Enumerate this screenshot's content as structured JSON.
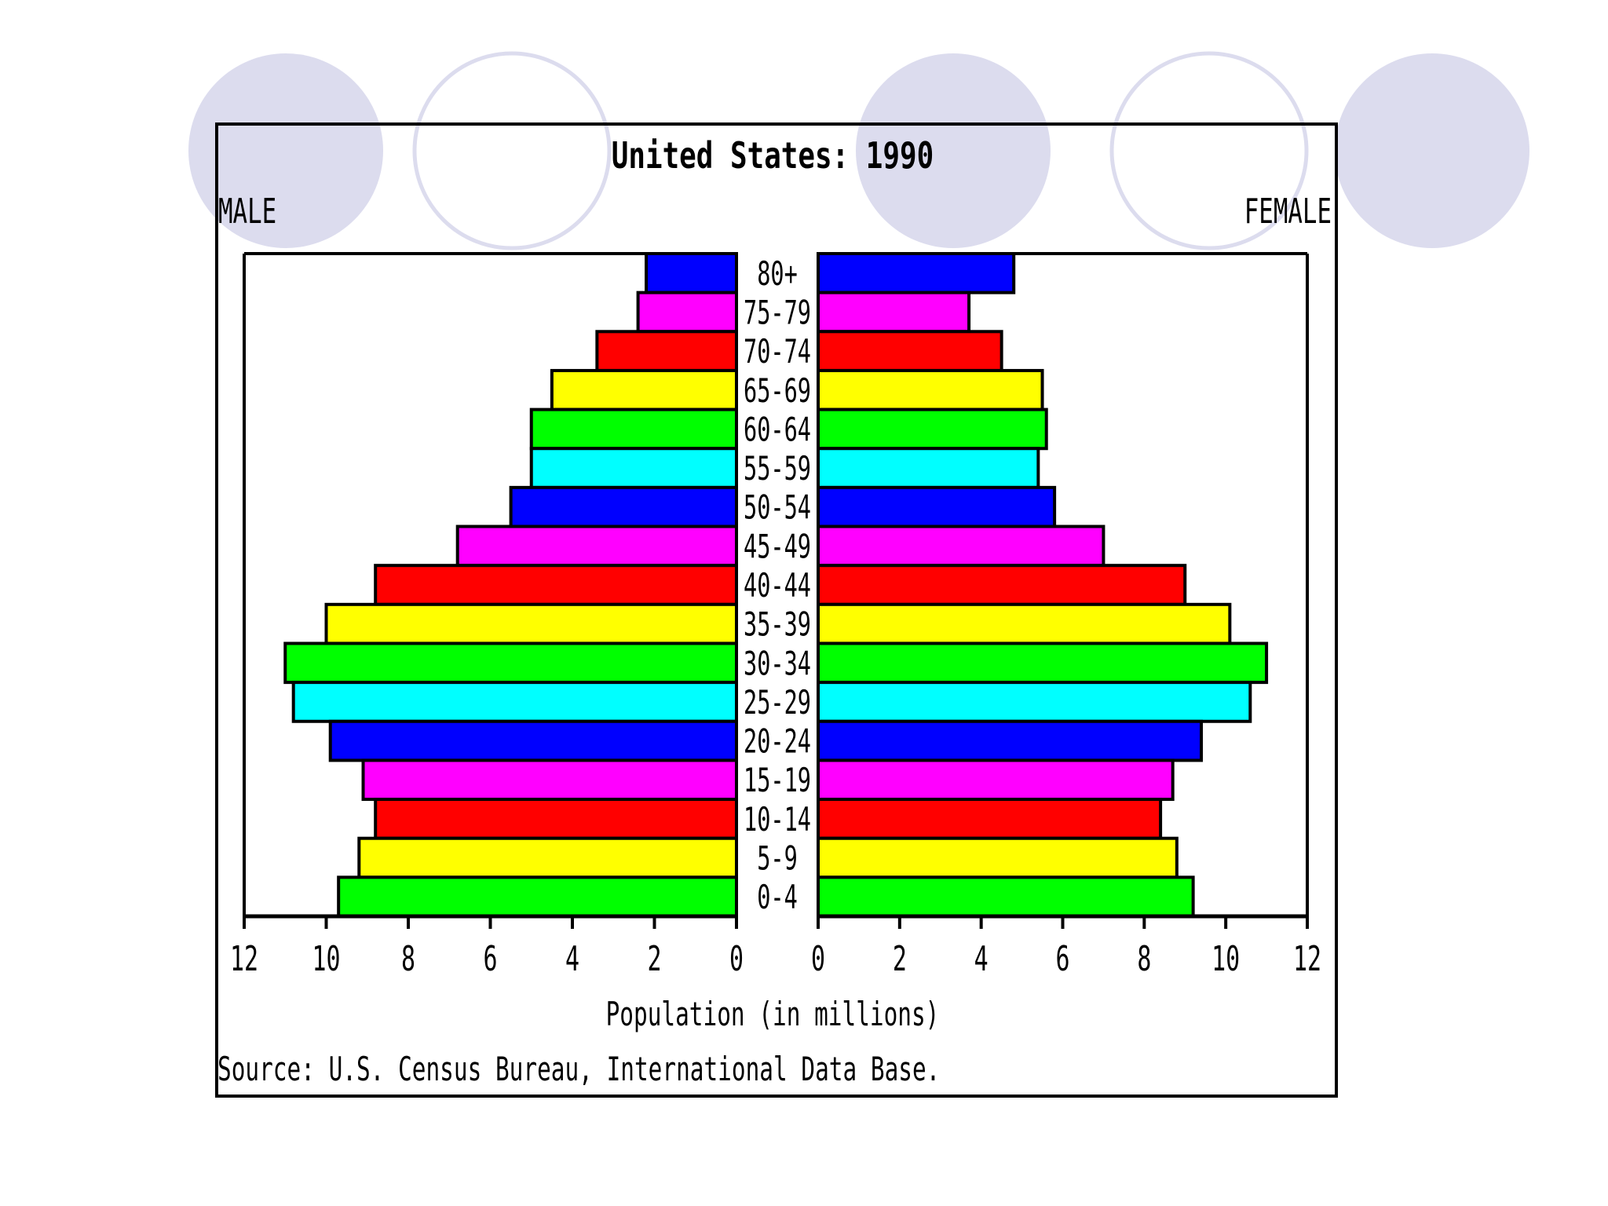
{
  "chart_data": {
    "type": "bar",
    "title": "United States: 1990",
    "left_label": "MALE",
    "right_label": "FEMALE",
    "xlabel": "Population (in millions)",
    "source": "Source: U.S. Census Bureau, International Data Base.",
    "xlim": [
      0,
      12
    ],
    "x_ticks": [
      "0",
      "2",
      "4",
      "6",
      "8",
      "10",
      "12"
    ],
    "grid": false,
    "categories": [
      "80+",
      "75-79",
      "70-74",
      "65-69",
      "60-64",
      "55-59",
      "50-54",
      "45-49",
      "40-44",
      "35-39",
      "30-34",
      "25-29",
      "20-24",
      "15-19",
      "10-14",
      "5-9",
      "0-4"
    ],
    "series": [
      {
        "name": "MALE",
        "values": [
          2.2,
          2.4,
          3.4,
          4.5,
          5.0,
          5.0,
          5.5,
          6.8,
          8.8,
          10.0,
          11.0,
          10.8,
          9.9,
          9.1,
          8.8,
          9.2,
          9.7
        ]
      },
      {
        "name": "FEMALE",
        "values": [
          4.8,
          3.7,
          4.5,
          5.5,
          5.6,
          5.4,
          5.8,
          7.0,
          9.0,
          10.1,
          11.0,
          10.6,
          9.4,
          8.7,
          8.4,
          8.8,
          9.2
        ]
      }
    ],
    "bar_colors": [
      "#0000ff",
      "#ff00ff",
      "#ff0000",
      "#ffff00",
      "#00ff00",
      "#00ffff",
      "#0000ff",
      "#ff00ff",
      "#ff0000",
      "#ffff00",
      "#00ff00",
      "#00ffff",
      "#0000ff",
      "#ff00ff",
      "#ff0000",
      "#ffff00",
      "#00ff00"
    ]
  },
  "decor": {
    "circle_fill": "#dcdcee",
    "circle_stroke": "#dcdcee"
  }
}
